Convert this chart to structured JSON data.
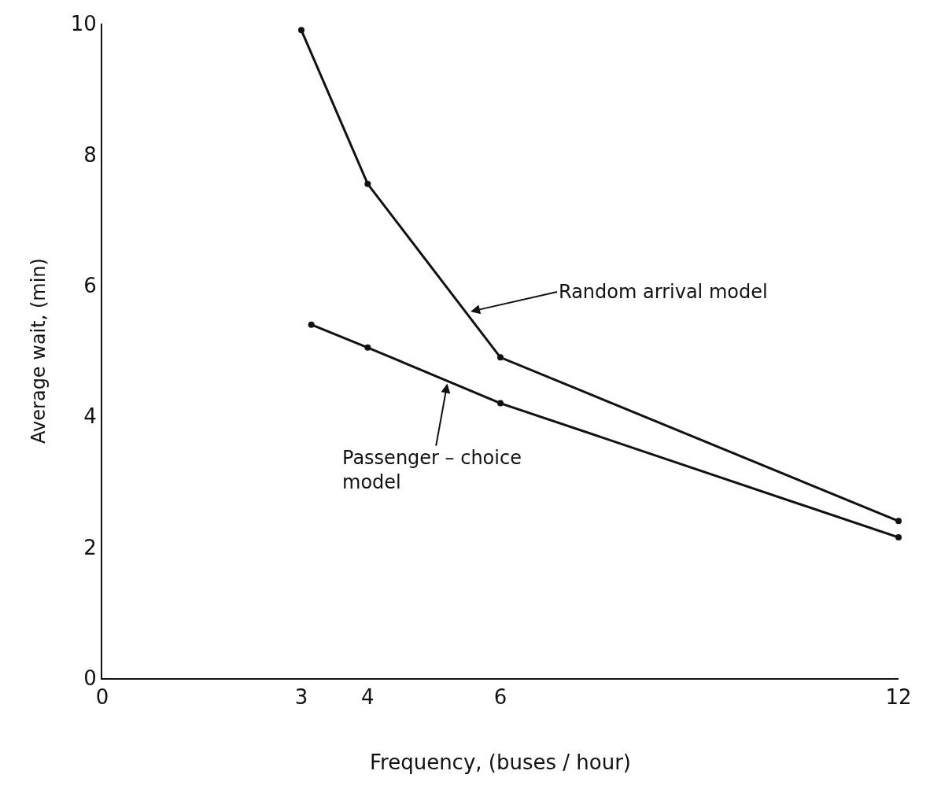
{
  "chart_data": {
    "type": "line",
    "xlabel": "Frequency, (buses / hour)",
    "ylabel": "Average wait, (min)",
    "series": [
      {
        "color": "#111111",
        "x": [
          3,
          4,
          6,
          12
        ],
        "values": [
          9.9,
          7.55,
          4.9,
          2.4
        ]
      },
      {
        "color": "#111111",
        "x": [
          3.15,
          4,
          6,
          12
        ],
        "values": [
          5.4,
          5.05,
          4.2,
          2.15
        ]
      }
    ],
    "xlim": [
      0,
      12
    ],
    "ylim": [
      0,
      10
    ],
    "xticks": [
      0,
      3,
      4,
      6,
      12
    ],
    "yticks": [
      0,
      2,
      4,
      6,
      8,
      10
    ],
    "marker": "circle",
    "line_style": "solid",
    "annotations": [
      {
        "text": "Random arrival model",
        "x": 5.55,
        "y": 5.6
      },
      {
        "text": "Passenger – choice\nmodel",
        "x": 5.2,
        "y": 4.5
      }
    ]
  }
}
